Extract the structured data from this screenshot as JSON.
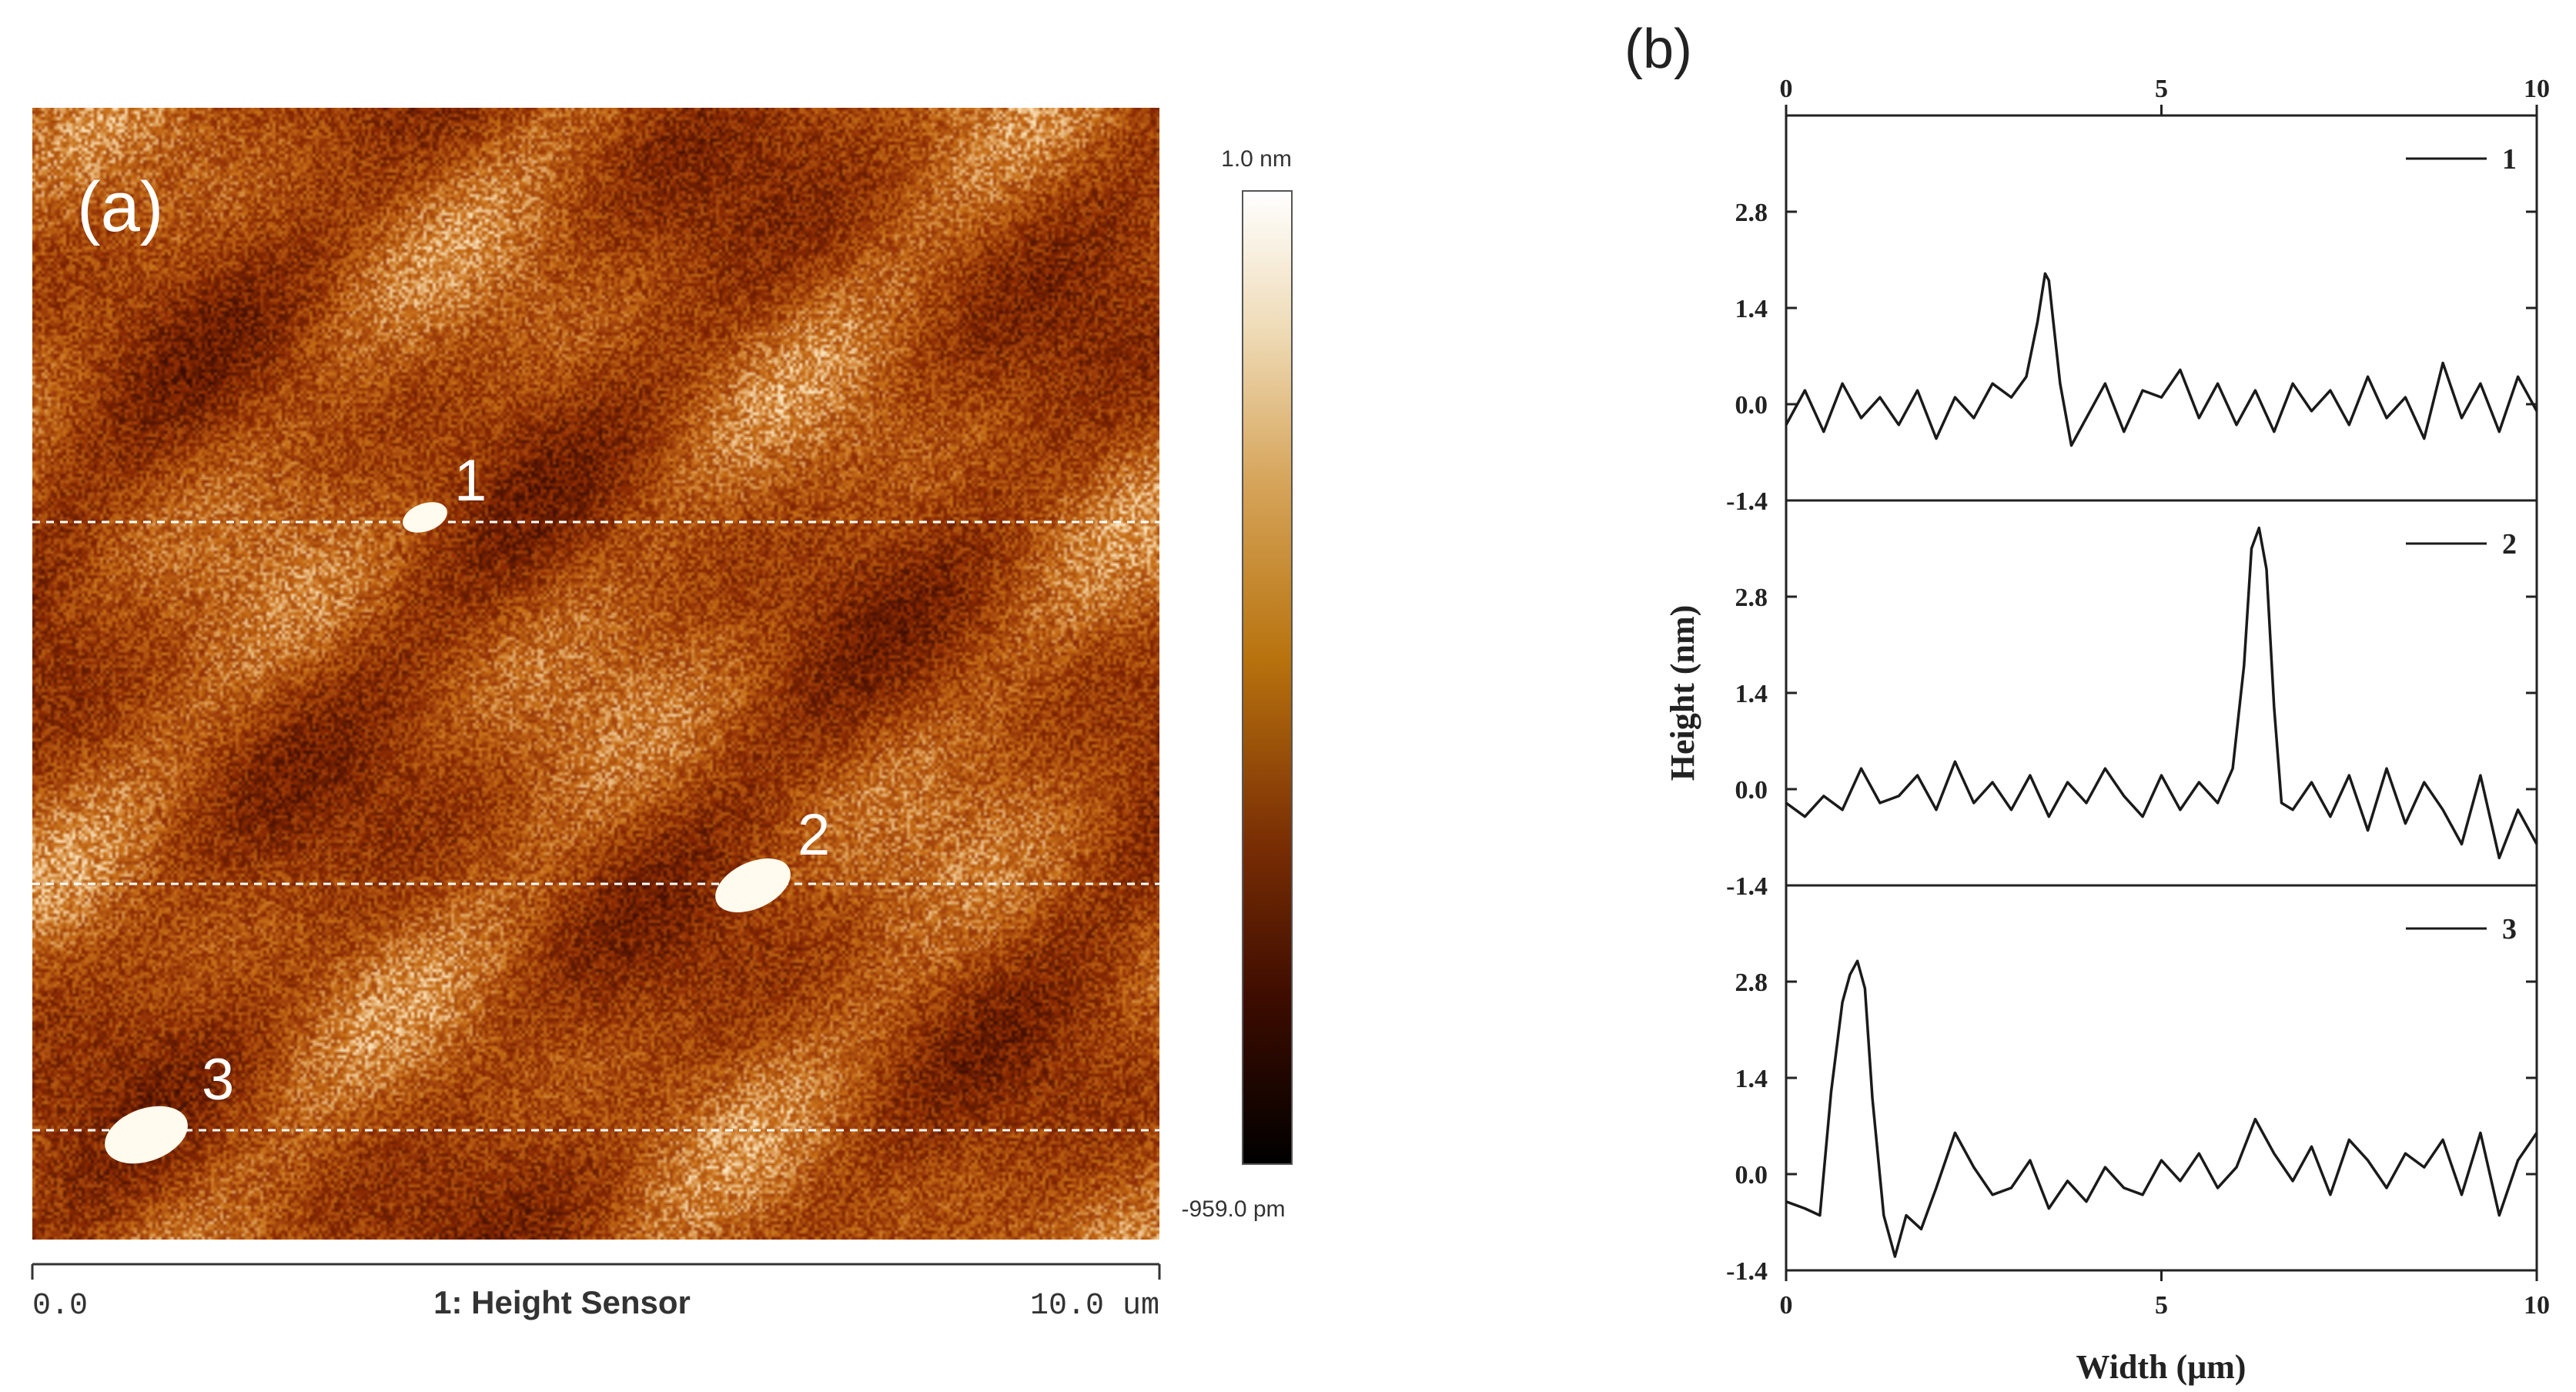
{
  "panel_a": {
    "label": "(a)",
    "colorbar": {
      "max_label": "1.0 nm",
      "min_label": "-959.0 pm",
      "colors": [
        "#000000",
        "#3d0c00",
        "#7a2e04",
        "#b8730e",
        "#d6a45a",
        "#efdcb8",
        "#ffffff"
      ]
    },
    "scale": {
      "left": "0.0",
      "title": "1: Height Sensor",
      "right": "10.0 um"
    },
    "markers": [
      {
        "label": "1"
      },
      {
        "label": "2"
      },
      {
        "label": "3"
      }
    ],
    "base_color": "#a8600a"
  },
  "panel_b": {
    "label": "(b)"
  },
  "chart_data": {
    "type": "line",
    "xlabel": "Width (μm)",
    "ylabel": "Height (nm)",
    "xlim": [
      0,
      10
    ],
    "ylim": [
      -1.4,
      4.2
    ],
    "xticks": [
      0,
      5,
      10
    ],
    "yticks": [
      -1.4,
      0.0,
      1.4,
      2.8
    ],
    "ytick_labels": [
      "-1.4",
      "0.0",
      "1.4",
      "2.8"
    ],
    "series": [
      {
        "name": "1",
        "x": [
          0,
          0.25,
          0.5,
          0.75,
          1,
          1.25,
          1.5,
          1.75,
          2,
          2.25,
          2.5,
          2.75,
          3,
          3.2,
          3.35,
          3.45,
          3.5,
          3.55,
          3.65,
          3.8,
          4,
          4.25,
          4.5,
          4.75,
          5,
          5.25,
          5.5,
          5.75,
          6,
          6.25,
          6.5,
          6.75,
          7,
          7.25,
          7.5,
          7.75,
          8,
          8.25,
          8.5,
          8.75,
          9,
          9.25,
          9.5,
          9.75,
          10
        ],
        "y": [
          -0.3,
          0.2,
          -0.4,
          0.3,
          -0.2,
          0.1,
          -0.3,
          0.2,
          -0.5,
          0.1,
          -0.2,
          0.3,
          0.1,
          0.4,
          1.2,
          1.9,
          1.8,
          1.3,
          0.3,
          -0.6,
          -0.2,
          0.3,
          -0.4,
          0.2,
          0.1,
          0.5,
          -0.2,
          0.3,
          -0.3,
          0.2,
          -0.4,
          0.3,
          -0.1,
          0.2,
          -0.3,
          0.4,
          -0.2,
          0.1,
          -0.5,
          0.6,
          -0.2,
          0.3,
          -0.4,
          0.4,
          -0.1
        ]
      },
      {
        "name": "2",
        "x": [
          0,
          0.25,
          0.5,
          0.75,
          1,
          1.25,
          1.5,
          1.75,
          2,
          2.25,
          2.5,
          2.75,
          3,
          3.25,
          3.5,
          3.75,
          4,
          4.25,
          4.5,
          4.75,
          5,
          5.25,
          5.5,
          5.75,
          5.95,
          6.1,
          6.2,
          6.3,
          6.4,
          6.5,
          6.6,
          6.75,
          7,
          7.25,
          7.5,
          7.75,
          8,
          8.25,
          8.5,
          8.75,
          9,
          9.25,
          9.5,
          9.75,
          10
        ],
        "y": [
          -0.2,
          -0.4,
          -0.1,
          -0.3,
          0.3,
          -0.2,
          -0.1,
          0.2,
          -0.3,
          0.4,
          -0.2,
          0.1,
          -0.3,
          0.2,
          -0.4,
          0.1,
          -0.2,
          0.3,
          -0.1,
          -0.4,
          0.2,
          -0.3,
          0.1,
          -0.2,
          0.3,
          1.8,
          3.5,
          3.8,
          3.2,
          1.2,
          -0.2,
          -0.3,
          0.1,
          -0.4,
          0.2,
          -0.6,
          0.3,
          -0.5,
          0.1,
          -0.3,
          -0.8,
          0.2,
          -1.0,
          -0.3,
          -0.8
        ]
      },
      {
        "name": "3",
        "x": [
          0,
          0.25,
          0.45,
          0.6,
          0.75,
          0.85,
          0.95,
          1.05,
          1.15,
          1.3,
          1.45,
          1.6,
          1.8,
          2,
          2.25,
          2.5,
          2.75,
          3,
          3.25,
          3.5,
          3.75,
          4,
          4.25,
          4.5,
          4.75,
          5,
          5.25,
          5.5,
          5.75,
          6,
          6.25,
          6.5,
          6.75,
          7,
          7.25,
          7.5,
          7.75,
          8,
          8.25,
          8.5,
          8.75,
          9,
          9.25,
          9.5,
          9.75,
          10
        ],
        "y": [
          -0.4,
          -0.5,
          -0.6,
          1.2,
          2.5,
          2.9,
          3.1,
          2.7,
          1.1,
          -0.6,
          -1.2,
          -0.6,
          -0.8,
          -0.2,
          0.6,
          0.1,
          -0.3,
          -0.2,
          0.2,
          -0.5,
          -0.1,
          -0.4,
          0.1,
          -0.2,
          -0.3,
          0.2,
          -0.1,
          0.3,
          -0.2,
          0.1,
          0.8,
          0.3,
          -0.1,
          0.4,
          -0.3,
          0.5,
          0.2,
          -0.2,
          0.3,
          0.1,
          0.5,
          -0.3,
          0.6,
          -0.6,
          0.2,
          0.6
        ]
      }
    ]
  }
}
